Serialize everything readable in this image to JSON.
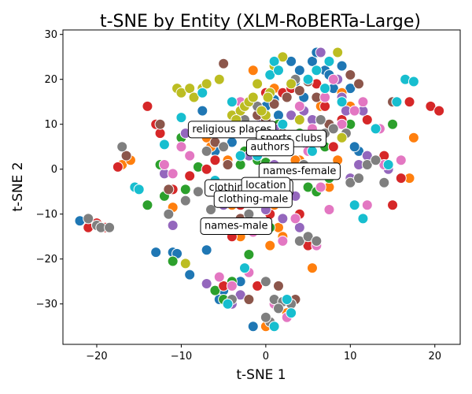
{
  "chart_data": {
    "type": "scatter",
    "title": "t-SNE by Entity (XLM-RoBERTa-Large)",
    "xlabel": "t-SNE 1",
    "ylabel": "t-SNE 2",
    "xlim": [
      -24,
      23
    ],
    "ylim": [
      -39,
      31
    ],
    "xticks": [
      -20,
      -10,
      0,
      10,
      20
    ],
    "yticks": [
      -30,
      -20,
      -10,
      0,
      10,
      20,
      30
    ],
    "grid": false,
    "legend": false,
    "palette": [
      "#1f77b4",
      "#ff7f0e",
      "#2ca02c",
      "#d62728",
      "#9467bd",
      "#8c564b",
      "#e377c2",
      "#7f7f7f",
      "#bcbd22",
      "#17becf"
    ],
    "annotations": [
      {
        "text": "religious places",
        "x": -4,
        "y": 9
      },
      {
        "text": "sports clubs",
        "x": 3,
        "y": 7
      },
      {
        "text": "authors",
        "x": 0.5,
        "y": 5
      },
      {
        "text": "names-female",
        "x": 4,
        "y": -0.3
      },
      {
        "text": "clothing-female",
        "x": -2,
        "y": -4
      },
      {
        "text": "location",
        "x": 0,
        "y": -3.5
      },
      {
        "text": "clothing-male",
        "x": -1.5,
        "y": -6.5
      },
      {
        "text": "names-male",
        "x": -3.5,
        "y": -12.5
      }
    ],
    "series": [
      {
        "color": "#1f77b4",
        "x": [
          -22,
          -13,
          -11,
          -10.5,
          -9,
          -7,
          -5.5,
          -3,
          -1,
          0,
          1,
          1.5,
          3,
          4,
          5.5,
          7,
          9,
          10,
          11,
          12,
          -6,
          -4,
          2,
          6,
          8,
          10.5,
          -1.5,
          0.5,
          3.5,
          -2.5,
          4.5,
          -7.5,
          -5,
          7.5,
          9.5,
          11.5
        ],
        "y": [
          -11.5,
          -18.5,
          -18.5,
          -18.8,
          -23.5,
          -18,
          -29,
          -25,
          -26,
          14,
          15.5,
          12,
          24,
          22,
          24,
          22,
          23,
          18,
          4,
          3,
          4,
          6,
          10,
          26,
          18,
          5,
          -35,
          -1,
          19.5,
          8,
          16,
          13,
          -27,
          21,
          14,
          -11
        ]
      },
      {
        "color": "#ff7f0e",
        "x": [
          -17,
          -16,
          -11,
          -7,
          -6.5,
          -6,
          -4.5,
          -3,
          -2,
          0,
          0.5,
          1,
          1.5,
          2,
          3,
          4,
          5,
          7.5,
          8.5,
          9,
          10,
          14,
          17,
          17.5,
          -4,
          2.5,
          5.5,
          6.5,
          0,
          -1.5,
          1,
          3.5
        ],
        "y": [
          1,
          2,
          -8.5,
          7,
          5,
          -4,
          2,
          -15,
          -13,
          -12,
          -17,
          -8,
          -13,
          -15,
          19,
          2,
          5,
          -4,
          2,
          17,
          14,
          3,
          -2,
          7,
          -8,
          -32,
          -22,
          14,
          -35,
          22,
          18,
          2
        ]
      },
      {
        "color": "#2ca02c",
        "x": [
          -14,
          -12.5,
          -12,
          -11,
          -10.5,
          -9.5,
          -8,
          -5,
          -4,
          -2,
          -1,
          0,
          1.5,
          3,
          4,
          5,
          6,
          7,
          10,
          15,
          -3,
          0.5,
          2,
          -6,
          -2.5,
          4.5,
          -10,
          1,
          7.5
        ],
        "y": [
          -8,
          1,
          -6,
          -20.5,
          18,
          -4.5,
          0.5,
          -29,
          -25,
          -19,
          2,
          1.5,
          10,
          19,
          8,
          -4,
          -5,
          5,
          10,
          10,
          1,
          -13,
          -11,
          -27,
          4,
          13,
          7,
          -3,
          -2
        ]
      },
      {
        "color": "#d62728",
        "x": [
          -21,
          -20,
          -19,
          -17.5,
          -14,
          -13,
          -12.5,
          -11,
          -9.5,
          -9,
          -7,
          -6,
          -4,
          -3,
          -2,
          0,
          2,
          4,
          6,
          7,
          9,
          14,
          15,
          16,
          19.5,
          20.5,
          -5,
          -1,
          3,
          5,
          8,
          12,
          0.5,
          2.5,
          17
        ],
        "y": [
          -13,
          -12,
          -13,
          0.5,
          14,
          10,
          8,
          -4.5,
          -7,
          -1.5,
          0,
          2,
          -15,
          -8,
          -12,
          17,
          17,
          -10,
          19,
          14,
          11,
          3,
          -8,
          -2,
          14,
          13,
          -26,
          -26,
          18,
          -17,
          5,
          11,
          -10,
          4,
          15
        ]
      },
      {
        "color": "#9467bd",
        "x": [
          -12,
          -11,
          -9.5,
          -7,
          -5,
          -4,
          -3,
          -1.5,
          0,
          1,
          3,
          4.5,
          5.5,
          6.5,
          8.5,
          9.5,
          10,
          11,
          12,
          14.5,
          16,
          -2,
          2,
          4,
          -0.5,
          1.5,
          5,
          -4.5,
          7,
          9,
          3.5,
          11.5
        ],
        "y": [
          -1,
          -12.5,
          8,
          -25.5,
          -8,
          -30,
          -28,
          -5,
          -9,
          1,
          12,
          13,
          11,
          26,
          20,
          13,
          -2,
          1,
          3,
          0,
          2,
          3,
          -11,
          -13,
          11,
          9,
          5,
          -6,
          18,
          16,
          -6,
          13
        ]
      },
      {
        "color": "#8c564b",
        "x": [
          -16.5,
          -12.5,
          -11.5,
          -5,
          -4.5,
          -4,
          -2,
          0,
          1,
          2.5,
          4,
          5,
          6,
          10,
          11,
          14,
          15,
          1.5,
          -1,
          3.5,
          -3,
          7.5,
          2,
          -6
        ],
        "y": [
          3,
          10,
          -4.5,
          23.5,
          1,
          9.5,
          -29,
          11,
          14.5,
          16,
          17.5,
          19.5,
          16,
          21,
          19,
          -3,
          15,
          -26,
          12,
          -29,
          -11,
          10,
          8,
          6
        ]
      },
      {
        "color": "#e377c2",
        "x": [
          -12,
          -11,
          -10,
          -9,
          -6,
          -5.5,
          -4,
          -3,
          -1.5,
          0,
          2,
          4,
          5,
          6,
          7,
          8,
          9,
          11.5,
          12,
          13.5,
          16,
          -2,
          1,
          3.5,
          5.5,
          -0.5,
          10.5,
          2.5,
          6.5,
          7.5,
          14
        ],
        "y": [
          1,
          -1,
          5,
          3,
          -3,
          -24,
          -26,
          15,
          -14,
          4,
          -16,
          14,
          4,
          -17,
          16,
          20,
          10,
          15,
          -8,
          9,
          2,
          -23,
          -30,
          -11,
          9,
          8,
          13,
          -33,
          -4,
          -9,
          1
        ]
      },
      {
        "color": "#7f7f7f",
        "x": [
          -21,
          -20,
          -19.5,
          -18.5,
          -17,
          -11.5,
          -9.5,
          -8,
          -7,
          -6.5,
          -5,
          -4,
          -3,
          -2,
          0,
          1,
          2,
          3,
          4,
          5,
          6,
          7,
          8,
          9,
          10,
          11,
          12,
          13,
          14,
          0.5,
          1.5,
          -1,
          2.5,
          -3.5,
          3.5,
          6.5,
          9.5,
          -2.5,
          4.5,
          0
        ],
        "y": [
          -11,
          -12.5,
          -13,
          -13,
          5,
          -10,
          -7,
          -5,
          4,
          -9,
          5,
          -29,
          -7,
          -10,
          -25,
          -29,
          -29.5,
          -30,
          -16,
          -15,
          -16,
          8,
          9,
          7,
          -3,
          -2,
          1,
          2,
          -3,
          -34,
          -31,
          14,
          5,
          -6,
          20,
          11,
          8,
          11,
          1,
          -33
        ]
      },
      {
        "color": "#bcbd22",
        "x": [
          -10.5,
          -10,
          -9,
          -8.5,
          -7.5,
          -7,
          -5.5,
          -4,
          -3,
          -2.5,
          -2,
          -1.5,
          -1,
          0,
          0.5,
          1,
          2,
          3,
          4,
          8.5,
          9,
          -9.5,
          -3.5,
          -0.5,
          0.25
        ],
        "y": [
          18,
          17,
          18,
          16,
          18,
          19,
          20,
          12,
          13,
          14,
          15,
          16,
          19,
          12,
          17,
          23,
          25,
          19,
          11,
          26,
          7,
          -21,
          11,
          13,
          16
        ]
      },
      {
        "color": "#17becf",
        "x": [
          -15.5,
          -15,
          -12,
          -10,
          -7.5,
          -6,
          -4,
          -3,
          -2.5,
          -1,
          0.5,
          1,
          1.5,
          2,
          3,
          5,
          6,
          7.5,
          9,
          10.5,
          11.5,
          13,
          14.5,
          15.5,
          16.5,
          17.5,
          -4.5,
          2.5,
          5.5,
          -8,
          1,
          7
        ],
        "y": [
          -4,
          -4.5,
          5.5,
          11.5,
          17,
          -2.5,
          15,
          3,
          -22,
          3,
          21,
          24,
          22,
          10,
          -32,
          20,
          22,
          24,
          15,
          -8,
          -11,
          9,
          1,
          15,
          20,
          19.5,
          -30,
          -29,
          4,
          8,
          -35,
          18
        ]
      }
    ]
  }
}
